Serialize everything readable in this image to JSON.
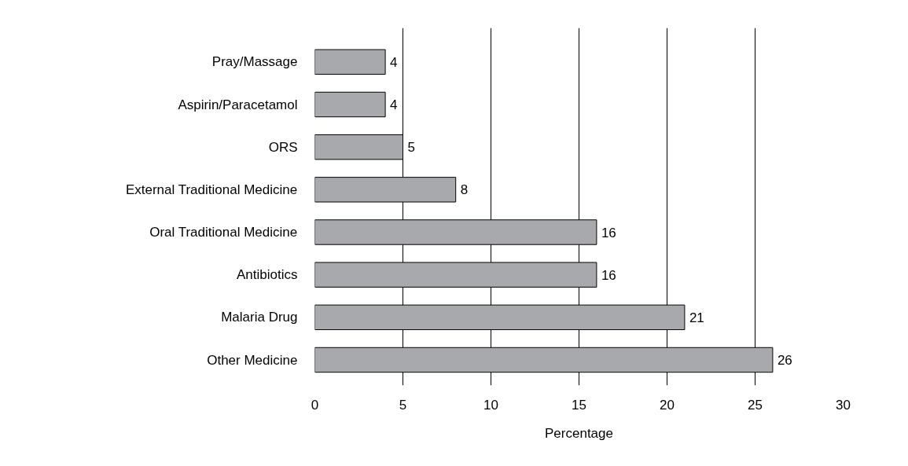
{
  "chart_data": {
    "type": "bar",
    "orientation": "horizontal",
    "xlabel": "Percentage",
    "categories": [
      "Pray/Massage",
      "Aspirin/Paracetamol",
      "ORS",
      "External Traditional Medicine",
      "Oral Traditional Medicine",
      "Antibiotics",
      "Malaria Drug",
      "Other Medicine"
    ],
    "values": [
      4,
      4,
      5,
      8,
      16,
      16,
      21,
      26
    ],
    "color": "#a7a9ac",
    "xlim": [
      0,
      30
    ],
    "xticks": [
      0,
      5,
      10,
      15,
      20,
      25,
      30
    ],
    "grid": "x",
    "data_labels": true
  }
}
